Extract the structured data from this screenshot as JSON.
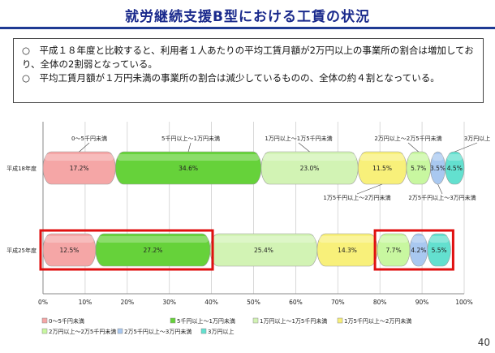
{
  "title": "就労継続支援B型における工賃の状況",
  "summary": [
    "○　平成１８年度と比較すると、利用者１人あたりの平均工賃月額が2万円以上の事業所の割合は増加しており、全体の2割弱となっている。",
    "○　平均工賃月額が１万円未満の事業所の割合は減少しているものの、全体の約４割となっている。"
  ],
  "page_number": "40",
  "colors": {
    "band1": "#f5a6a6",
    "band2": "#66d23a",
    "band3": "#d2f3b4",
    "band4": "#f8f07a",
    "band5": "#c8f7a0",
    "band6": "#a9c8f0",
    "band7": "#63e0cf",
    "highlight": "#e01010"
  },
  "chart_data": {
    "type": "bar",
    "orientation": "horizontal",
    "stacked": true,
    "percent": true,
    "categories": [
      "平成18年度",
      "平成25年度"
    ],
    "series": [
      {
        "name": "0～5千円未満",
        "values": [
          17.2,
          12.5
        ],
        "labels": [
          "17.2%",
          "12.5%"
        ]
      },
      {
        "name": "5千円以上～1万円未満",
        "values": [
          34.6,
          27.2
        ],
        "labels": [
          "34.6%",
          "27.2%"
        ]
      },
      {
        "name": "1万円以上～1万5千円未満",
        "values": [
          23.0,
          25.4
        ],
        "labels": [
          "23.0%",
          "25.4%"
        ]
      },
      {
        "name": "1万5千円以上～2万円未満",
        "values": [
          11.5,
          14.3
        ],
        "labels": [
          "11.5%",
          "14.3%"
        ]
      },
      {
        "name": "2万円以上～2万5千円未満",
        "values": [
          5.7,
          7.7
        ],
        "labels": [
          "5.7%",
          "7.7%"
        ]
      },
      {
        "name": "2万5千円以上～3万円未満",
        "values": [
          3.5,
          4.2
        ],
        "labels": [
          "3.5%",
          "4.2%"
        ]
      },
      {
        "name": "3万円以上",
        "values": [
          4.5,
          5.5
        ],
        "labels": [
          "4.5%",
          "5.5%"
        ]
      }
    ],
    "xlim": [
      0,
      100
    ],
    "xticks": [
      "0%",
      "10%",
      "20%",
      "30%",
      "40%",
      "50%",
      "60%",
      "70%",
      "80%",
      "90%",
      "100%"
    ],
    "callouts_above": [
      "0～5千円未満",
      "5千円以上～1万円未満",
      "1万円以上～1万5千円未満",
      "2万円以上～2万5千円未満",
      "3万円以上"
    ],
    "callouts_below": [
      "1万5千円以上～2万円未満",
      "2万5千円以上～3万円未満"
    ],
    "legend_position": "bottom",
    "highlight_groups": [
      [
        "0～5千円未満",
        "5千円以上～1万円未満"
      ],
      [
        "2万円以上～2万5千円未満",
        "2万5千円以上～3万円未満",
        "3万円以上"
      ]
    ]
  }
}
